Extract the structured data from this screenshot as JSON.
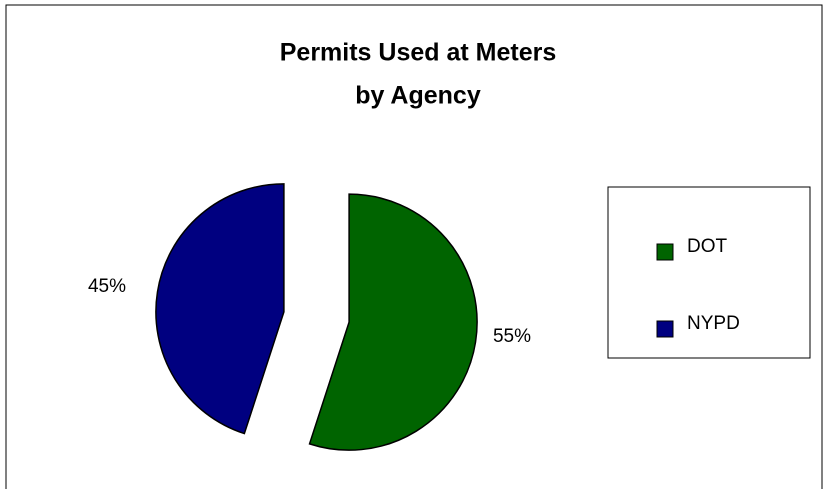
{
  "chart_data": {
    "type": "pie",
    "title": [
      "Permits Used at Meters",
      "by Agency"
    ],
    "categories": [
      "DOT",
      "NYPD"
    ],
    "values": [
      55,
      45
    ],
    "value_labels": [
      "55%",
      "45%"
    ],
    "colors": [
      "#006400",
      "#000080"
    ],
    "exploded": true,
    "legend": "right"
  }
}
